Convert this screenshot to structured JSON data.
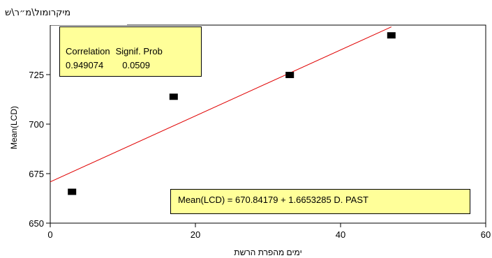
{
  "top_label": "מיקרומול\\מ״ר\\ש",
  "chart_data": {
    "type": "scatter",
    "xlabel": "ימים מהפרת הרשת",
    "ylabel": "Mean(LCD)",
    "xlim": [
      0,
      60
    ],
    "ylim": [
      650,
      750
    ],
    "x_ticks": [
      "0",
      "20",
      "40",
      "60"
    ],
    "y_ticks": [
      "650",
      "675",
      "700",
      "725"
    ],
    "y_tick_values": [
      650,
      675,
      700,
      725
    ],
    "x_tick_values": [
      0,
      20,
      40,
      60
    ],
    "points": [
      {
        "x": 3,
        "y": 666
      },
      {
        "x": 17,
        "y": 714
      },
      {
        "x": 33,
        "y": 725
      },
      {
        "x": 47,
        "y": 745
      }
    ],
    "fit": {
      "intercept": 670.84179,
      "slope": 1.6653285,
      "x_range": [
        0,
        47
      ]
    },
    "grid": false
  },
  "correlation_box": {
    "headers": [
      "Correlation",
      "Signif. Prob"
    ],
    "values": [
      "0.949074",
      "0.0509"
    ]
  },
  "equation": "Mean(LCD) = 670.84179 + 1.6653285 D. PAST",
  "colors": {
    "fit_line": "#e00000",
    "marker": "#000000",
    "box_fill": "#ffff99",
    "axis": "#000000"
  }
}
